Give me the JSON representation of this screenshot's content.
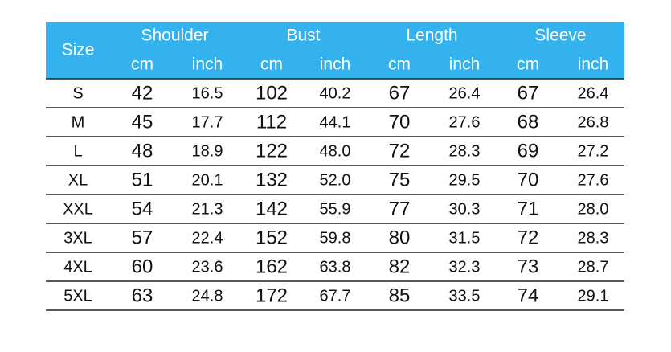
{
  "table": {
    "size_header": "Size",
    "groups": [
      {
        "name": "Shoulder",
        "units": [
          "cm",
          "inch"
        ]
      },
      {
        "name": "Bust",
        "units": [
          "cm",
          "inch"
        ]
      },
      {
        "name": "Length",
        "units": [
          "cm",
          "inch"
        ]
      },
      {
        "name": "Sleeve",
        "units": [
          "cm",
          "inch"
        ]
      }
    ],
    "rows": [
      [
        "S",
        "42",
        "16.5",
        "102",
        "40.2",
        "67",
        "26.4",
        "67",
        "26.4"
      ],
      [
        "M",
        "45",
        "17.7",
        "112",
        "44.1",
        "70",
        "27.6",
        "68",
        "26.8"
      ],
      [
        "L",
        "48",
        "18.9",
        "122",
        "48.0",
        "72",
        "28.3",
        "69",
        "27.2"
      ],
      [
        "XL",
        "51",
        "20.1",
        "132",
        "52.0",
        "75",
        "29.5",
        "70",
        "27.6"
      ],
      [
        "XXL",
        "54",
        "21.3",
        "142",
        "55.9",
        "77",
        "30.3",
        "71",
        "28.0"
      ],
      [
        "3XL",
        "57",
        "22.4",
        "152",
        "59.8",
        "80",
        "31.5",
        "72",
        "28.3"
      ],
      [
        "4XL",
        "60",
        "23.6",
        "162",
        "63.8",
        "82",
        "32.3",
        "73",
        "28.7"
      ],
      [
        "5XL",
        "63",
        "24.8",
        "172",
        "67.7",
        "85",
        "33.5",
        "74",
        "29.1"
      ]
    ]
  }
}
